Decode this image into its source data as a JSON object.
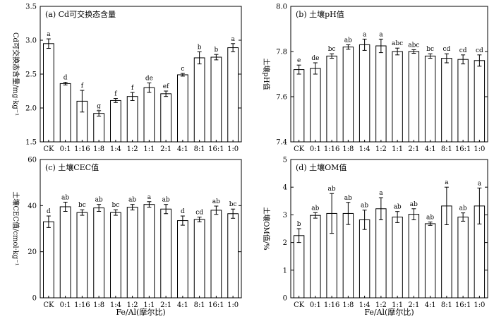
{
  "chart_data": [
    {
      "type": "bar",
      "panel_title": "(a) Cd可交换态含量",
      "ylabel": "Cd可交换态含量/mg·kg⁻¹",
      "xlabel": "",
      "ylim": [
        1.5,
        3.5
      ],
      "yticks": [
        "1.5",
        "2.0",
        "2.5",
        "3.0",
        "3.5"
      ],
      "categories": [
        "CK",
        "0:1",
        "1:16",
        "1:8",
        "1:4",
        "1:2",
        "1:1",
        "2:1",
        "4:1",
        "8:1",
        "16:1",
        "1:0"
      ],
      "values": [
        2.95,
        2.36,
        2.1,
        1.92,
        2.11,
        2.17,
        2.3,
        2.21,
        2.49,
        2.74,
        2.75,
        2.89
      ],
      "errors": [
        0.07,
        0.02,
        0.16,
        0.04,
        0.03,
        0.06,
        0.07,
        0.04,
        0.02,
        0.09,
        0.04,
        0.06
      ],
      "sig_letters": [
        "a",
        "d",
        "f",
        "g",
        "f",
        "f",
        "de",
        "ef",
        "c",
        "b",
        "b",
        "a"
      ]
    },
    {
      "type": "bar",
      "panel_title": "(b) 土壤pH值",
      "ylabel": "土壤pH值",
      "xlabel": "",
      "ylim": [
        7.4,
        8.0
      ],
      "yticks": [
        "7.4",
        "7.6",
        "7.8",
        "8.0"
      ],
      "categories": [
        "CK",
        "0:1",
        "1:16",
        "1:8",
        "1:4",
        "1:2",
        "1:1",
        "2:1",
        "4:1",
        "8:1",
        "16:1",
        "1:0"
      ],
      "values": [
        7.72,
        7.725,
        7.78,
        7.82,
        7.83,
        7.825,
        7.8,
        7.8,
        7.78,
        7.77,
        7.765,
        7.76
      ],
      "errors": [
        0.02,
        0.025,
        0.01,
        0.01,
        0.025,
        0.03,
        0.015,
        0.008,
        0.01,
        0.02,
        0.02,
        0.025
      ],
      "sig_letters": [
        "e",
        "de",
        "bc",
        "ab",
        "a",
        "a",
        "abc",
        "abc",
        "bc",
        "cd",
        "cd",
        "cd"
      ]
    },
    {
      "type": "bar",
      "panel_title": "(c) 土壤CEC值",
      "ylabel": "土壤CEC值/cmol·kg⁻¹",
      "xlabel": "Fe/Al(摩尔比)",
      "ylim": [
        0,
        60
      ],
      "yticks": [
        "0",
        "20",
        "40",
        "60"
      ],
      "categories": [
        "CK",
        "0:1",
        "1:16",
        "1:8",
        "1:4",
        "1:2",
        "1:1",
        "2:1",
        "4:1",
        "8:1",
        "16:1",
        "1:0"
      ],
      "values": [
        33.0,
        39.5,
        37.0,
        39.0,
        37.0,
        39.3,
        40.5,
        38.5,
        33.5,
        34.0,
        38.0,
        36.5
      ],
      "errors": [
        2.5,
        2.0,
        1.2,
        1.5,
        1.2,
        1.2,
        1.2,
        2.0,
        2.0,
        1.0,
        1.8,
        2.0
      ],
      "sig_letters": [
        "d",
        "ab",
        "bc",
        "ab",
        "bc",
        "ab",
        "a",
        "ab",
        "d",
        "cd",
        "ab",
        "bc"
      ]
    },
    {
      "type": "bar",
      "panel_title": "(d) 土壤OM值",
      "ylabel": "土壤OM值/%",
      "xlabel": "Fe/Al(摩尔比)",
      "ylim": [
        0,
        5
      ],
      "yticks": [
        "0",
        "1",
        "2",
        "3",
        "4",
        "5"
      ],
      "categories": [
        "CK",
        "0:1",
        "1:16",
        "1:8",
        "1:4",
        "1:2",
        "1:1",
        "2:1",
        "4:1",
        "8:1",
        "16:1",
        "1:0"
      ],
      "values": [
        2.25,
        2.98,
        3.05,
        3.05,
        2.82,
        3.22,
        2.92,
        3.02,
        2.68,
        3.32,
        2.92,
        3.32
      ],
      "errors": [
        0.25,
        0.1,
        0.72,
        0.4,
        0.35,
        0.4,
        0.2,
        0.2,
        0.06,
        0.68,
        0.15,
        0.65
      ],
      "sig_letters": [
        "b",
        "ab",
        "ab",
        "ab",
        "ab",
        "a",
        "ab",
        "ab",
        "ab",
        "a",
        "ab",
        "a"
      ]
    }
  ]
}
